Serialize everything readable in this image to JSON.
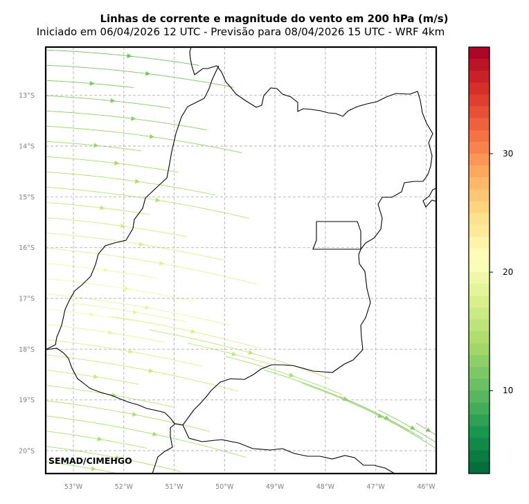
{
  "title": "Linhas de corrente e magnitude do vento em 200 hPa (m/s)",
  "subtitle": "Iniciado em 06/04/2026 12 UTC - Previsão para 08/04/2026 15 UTC - WRF 4km",
  "credit": "SEMAD/CIMEHGO",
  "map": {
    "lon_range": [
      -53.55,
      -45.8
    ],
    "lat_range": [
      -20.45,
      -12.05
    ],
    "lat_labels": [
      "13°S",
      "14°S",
      "15°S",
      "16°S",
      "17°S",
      "18°S",
      "19°S",
      "20°S"
    ],
    "lon_labels": [
      "53°W",
      "52°W",
      "51°W",
      "50°W",
      "49°W",
      "48°W",
      "47°W",
      "46°W"
    ],
    "gridlines": "dashed gray",
    "field": "wind speed streamlines at 200 hPa, flow from west/northwest toward east/southeast, stronger (green) in north and south-east, weaker (light yellow) in central-west"
  },
  "colorbar": {
    "vmin": 3,
    "vmax": 39,
    "ticks": [
      "10",
      "20",
      "30"
    ],
    "tick_values": [
      10,
      20,
      30
    ],
    "colormap": "RdYlGn reversed",
    "colors": [
      "#006837",
      "#1a9850",
      "#66bd63",
      "#a6d96a",
      "#d9ef8b",
      "#ffffbf",
      "#fee08b",
      "#fdae61",
      "#f46d43",
      "#d73027",
      "#a50026"
    ]
  }
}
